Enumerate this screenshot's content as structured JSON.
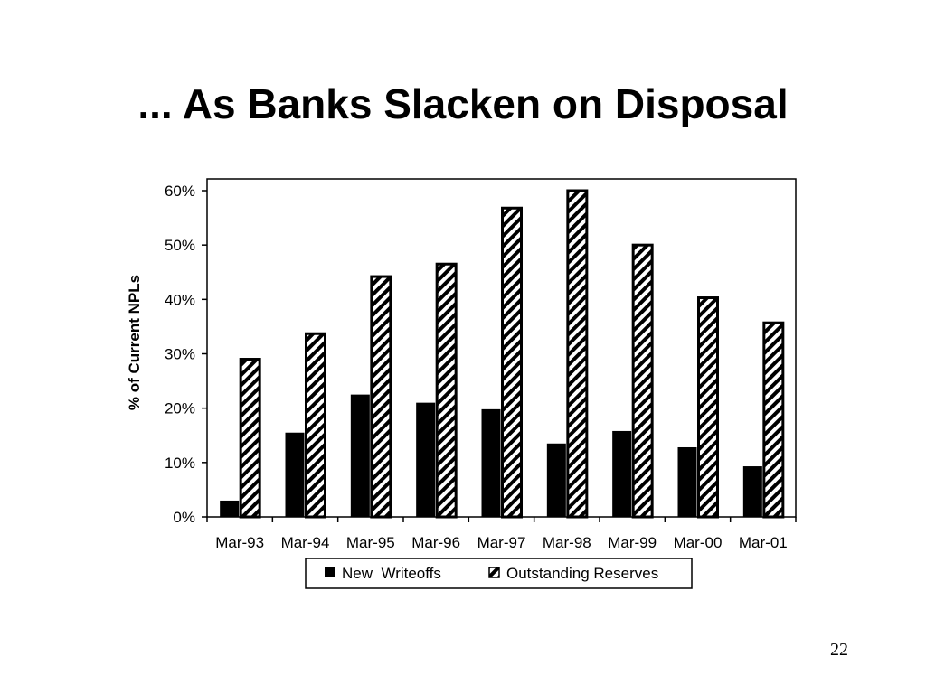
{
  "slide": {
    "title": "... As Banks Slacken on Disposal",
    "page_number": "22"
  },
  "chart_data": {
    "type": "bar",
    "title": "",
    "xlabel": "",
    "ylabel": "% of Current NPLs",
    "categories": [
      "Mar-93",
      "Mar-94",
      "Mar-95",
      "Mar-96",
      "Mar-97",
      "Mar-98",
      "Mar-99",
      "Mar-00",
      "Mar-01"
    ],
    "series": [
      {
        "name": "New  Writeoffs",
        "values": [
          3,
          15.5,
          22.5,
          21,
          19.8,
          13.5,
          15.8,
          12.8,
          9.3
        ],
        "fill": "#000000"
      },
      {
        "name": "Outstanding Reserves",
        "values": [
          29,
          33.7,
          44.2,
          46.5,
          56.8,
          60,
          50,
          40.3,
          35.7
        ],
        "fill": "hatch"
      }
    ],
    "ylim": [
      0,
      60
    ],
    "yticks": [
      0,
      10,
      20,
      30,
      40,
      50,
      60
    ],
    "yticklabels": [
      "0%",
      "10%",
      "20%",
      "30%",
      "40%",
      "50%",
      "60%"
    ],
    "grid": false,
    "legend_position": "bottom"
  }
}
